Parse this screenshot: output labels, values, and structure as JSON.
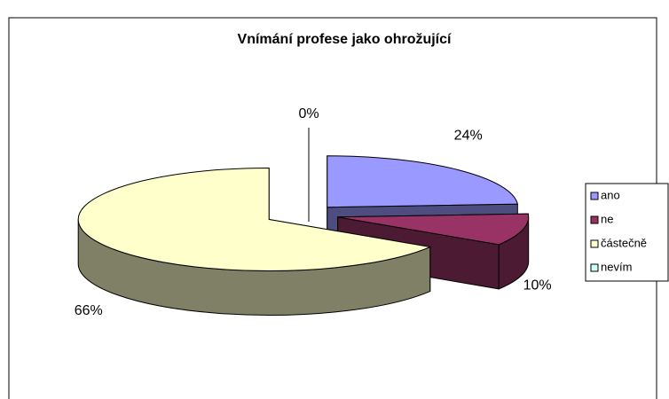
{
  "chart_data": {
    "type": "pie3d",
    "title": "Vnímání profese jako ohrožující",
    "categories": [
      "ano",
      "ne",
      "částečně",
      "nevím"
    ],
    "values": [
      24,
      10,
      66,
      0
    ],
    "value_labels": [
      "24%",
      "10%",
      "66%",
      "0%"
    ],
    "colors": [
      "#9999ff",
      "#993366",
      "#ffffcc",
      "#ccffff"
    ],
    "legend": "right"
  }
}
